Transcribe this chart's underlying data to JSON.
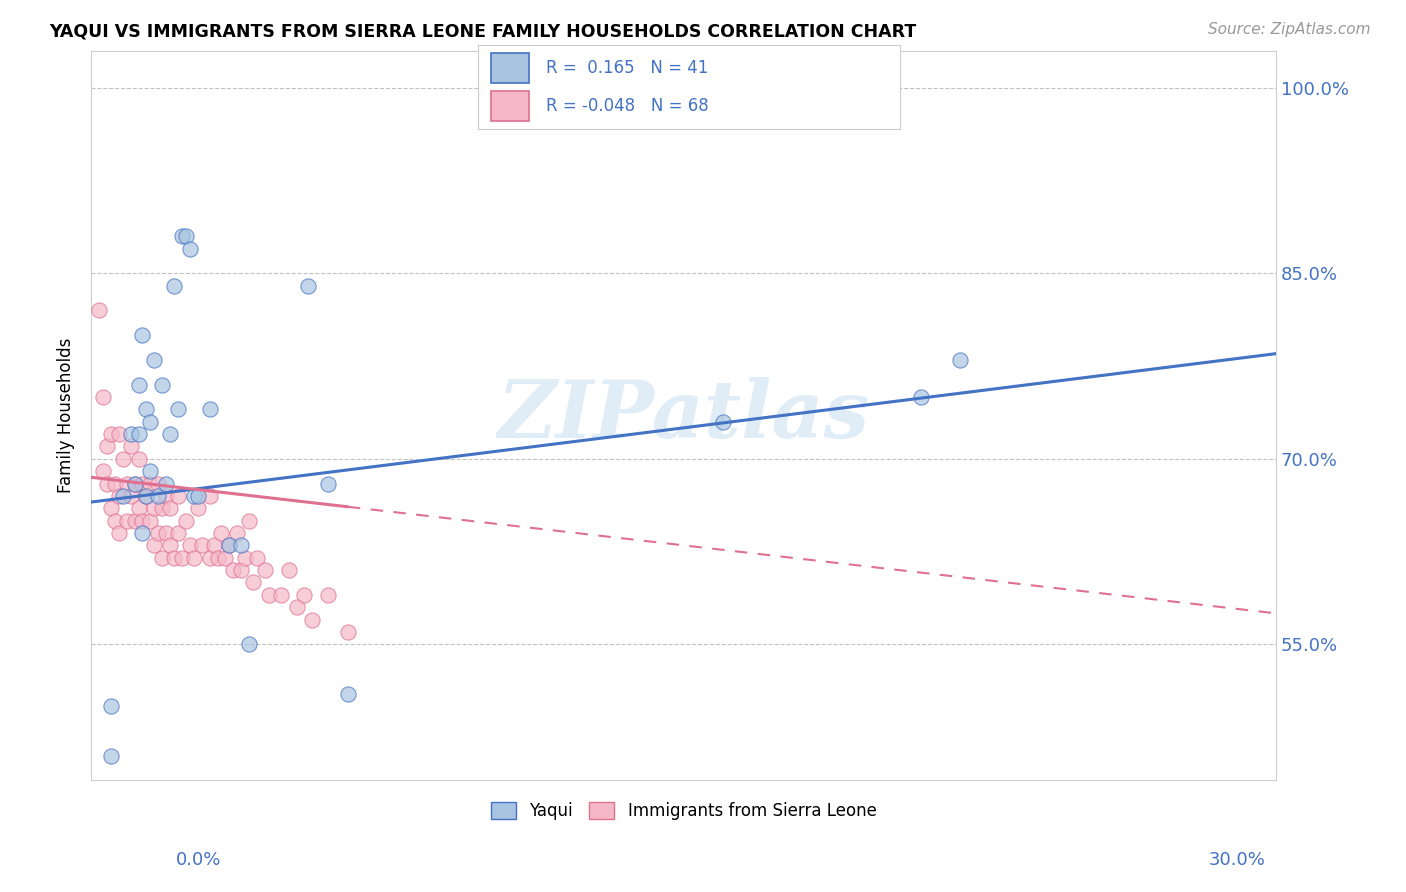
{
  "title": "YAQUI VS IMMIGRANTS FROM SIERRA LEONE FAMILY HOUSEHOLDS CORRELATION CHART",
  "source": "Source: ZipAtlas.com",
  "ylabel": "Family Households",
  "yaxis_ticks": [
    "55.0%",
    "70.0%",
    "85.0%",
    "100.0%"
  ],
  "yaxis_values": [
    0.55,
    0.7,
    0.85,
    1.0
  ],
  "xlim": [
    0.0,
    0.3
  ],
  "ylim": [
    0.44,
    1.03
  ],
  "yaqui_color": "#a8c4e0",
  "sierra_leone_color": "#f4b8c8",
  "trendline_yaqui_color": "#4472c4",
  "trendline_sierra_leone_color": "#e07090",
  "watermark": "ZIPatlas",
  "trendline_yaqui_x0": 0.0,
  "trendline_yaqui_y0": 0.665,
  "trendline_yaqui_x1": 0.3,
  "trendline_yaqui_y1": 0.785,
  "trendline_sierra_x0": 0.0,
  "trendline_sierra_y0": 0.685,
  "trendline_sierra_x1": 0.3,
  "trendline_sierra_y1": 0.575,
  "yaqui_x": [
    0.005,
    0.005,
    0.008,
    0.01,
    0.011,
    0.012,
    0.012,
    0.013,
    0.013,
    0.014,
    0.014,
    0.015,
    0.015,
    0.016,
    0.017,
    0.018,
    0.019,
    0.02,
    0.021,
    0.022,
    0.023,
    0.024,
    0.025,
    0.026,
    0.027,
    0.03,
    0.035,
    0.038,
    0.04,
    0.055,
    0.06,
    0.065,
    0.16,
    0.21,
    0.22
  ],
  "yaqui_y": [
    0.46,
    0.5,
    0.67,
    0.72,
    0.68,
    0.76,
    0.72,
    0.8,
    0.64,
    0.67,
    0.74,
    0.69,
    0.73,
    0.78,
    0.67,
    0.76,
    0.68,
    0.72,
    0.84,
    0.74,
    0.88,
    0.88,
    0.87,
    0.67,
    0.67,
    0.74,
    0.63,
    0.63,
    0.55,
    0.84,
    0.68,
    0.51,
    0.73,
    0.75,
    0.78
  ],
  "sierra_x": [
    0.002,
    0.003,
    0.003,
    0.004,
    0.004,
    0.005,
    0.005,
    0.006,
    0.006,
    0.007,
    0.007,
    0.007,
    0.008,
    0.009,
    0.009,
    0.01,
    0.01,
    0.011,
    0.011,
    0.012,
    0.012,
    0.013,
    0.013,
    0.014,
    0.015,
    0.015,
    0.016,
    0.016,
    0.017,
    0.017,
    0.018,
    0.018,
    0.019,
    0.019,
    0.02,
    0.02,
    0.021,
    0.022,
    0.022,
    0.023,
    0.024,
    0.025,
    0.026,
    0.027,
    0.028,
    0.03,
    0.03,
    0.031,
    0.032,
    0.033,
    0.034,
    0.035,
    0.036,
    0.037,
    0.038,
    0.039,
    0.04,
    0.041,
    0.042,
    0.044,
    0.045,
    0.048,
    0.05,
    0.052,
    0.054,
    0.056,
    0.06,
    0.065
  ],
  "sierra_y": [
    0.82,
    0.69,
    0.75,
    0.68,
    0.71,
    0.66,
    0.72,
    0.65,
    0.68,
    0.64,
    0.67,
    0.72,
    0.7,
    0.65,
    0.68,
    0.67,
    0.71,
    0.65,
    0.68,
    0.66,
    0.7,
    0.65,
    0.68,
    0.67,
    0.65,
    0.68,
    0.63,
    0.66,
    0.64,
    0.68,
    0.62,
    0.66,
    0.64,
    0.67,
    0.63,
    0.66,
    0.62,
    0.64,
    0.67,
    0.62,
    0.65,
    0.63,
    0.62,
    0.66,
    0.63,
    0.62,
    0.67,
    0.63,
    0.62,
    0.64,
    0.62,
    0.63,
    0.61,
    0.64,
    0.61,
    0.62,
    0.65,
    0.6,
    0.62,
    0.61,
    0.59,
    0.59,
    0.61,
    0.58,
    0.59,
    0.57,
    0.59,
    0.56
  ]
}
